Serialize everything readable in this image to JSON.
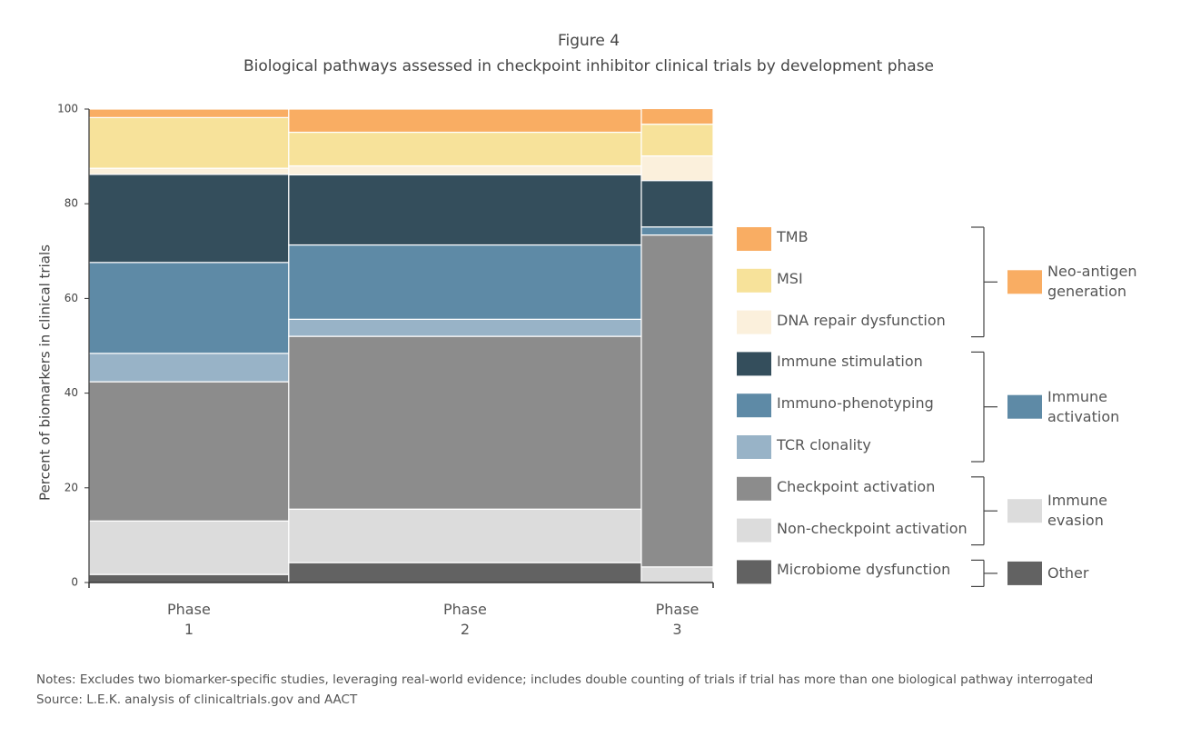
{
  "chart_data": {
    "type": "mosaic",
    "title": "Figure 4",
    "subtitle": "Biological pathways assessed in checkpoint inhibitor clinical trials by development phase",
    "y_label": "Percent of biomarkers in clinical trials",
    "categories": [
      "Phase 1",
      "Phase 2",
      "Phase 3"
    ],
    "widths": [
      32,
      56.5,
      11.5
    ],
    "ylim": [
      0,
      100
    ],
    "yticks": [
      0,
      20,
      40,
      60,
      80,
      100
    ],
    "series": [
      {
        "name": "Microbiome dysfunction",
        "color": "#626262",
        "values": [
          1.7,
          4.2,
          0
        ]
      },
      {
        "name": "Non-checkpoint activation",
        "color": "#dcdcdc",
        "values": [
          11.3,
          11.3,
          3.3
        ]
      },
      {
        "name": "Checkpoint activation",
        "color": "#8c8c8c",
        "values": [
          29.4,
          36.5,
          70.1
        ]
      },
      {
        "name": "TCR clonality",
        "color": "#98b3c7",
        "values": [
          6.0,
          3.6,
          0
        ]
      },
      {
        "name": "Immuno-phenotyping",
        "color": "#5e8aa6",
        "values": [
          19.2,
          15.7,
          1.7
        ]
      },
      {
        "name": "Immune stimulation",
        "color": "#344e5c",
        "values": [
          18.6,
          14.8,
          9.8
        ]
      },
      {
        "name": "DNA repair dysfunction",
        "color": "#fbf0dc",
        "values": [
          1.3,
          1.9,
          5.2
        ]
      },
      {
        "name": "MSI",
        "color": "#f7e29a",
        "values": [
          10.7,
          7.1,
          6.7
        ]
      },
      {
        "name": "TMB",
        "color": "#f9ad63",
        "values": [
          1.8,
          4.9,
          3.3
        ]
      }
    ],
    "groups": [
      {
        "name": "Neo-antigen generation",
        "color": "#f9ad63"
      },
      {
        "name": "Immune activation",
        "color": "#5e8aa6"
      },
      {
        "name": "Immune evasion",
        "color": "#dcdcdc"
      },
      {
        "name": "Other",
        "color": "#626262"
      }
    ],
    "notes": "Notes: Excludes two biomarker-specific studies, leveraging real-world evidence; includes double counting of trials if trial has more than one biological pathway interrogated",
    "source": "Source: L.E.K. analysis of clinicaltrials.gov and AACT"
  }
}
